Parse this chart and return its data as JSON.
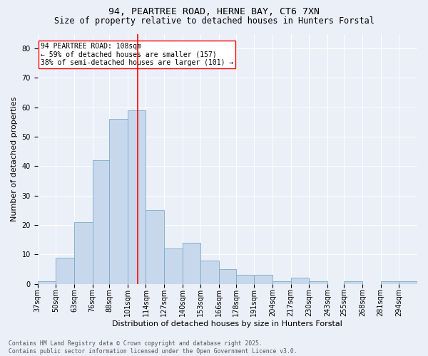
{
  "title1": "94, PEARTREE ROAD, HERNE BAY, CT6 7XN",
  "title2": "Size of property relative to detached houses in Hunters Forstal",
  "xlabel": "Distribution of detached houses by size in Hunters Forstal",
  "ylabel": "Number of detached properties",
  "categories": [
    "37sqm",
    "50sqm",
    "63sqm",
    "76sqm",
    "88sqm",
    "101sqm",
    "114sqm",
    "127sqm",
    "140sqm",
    "153sqm",
    "166sqm",
    "178sqm",
    "191sqm",
    "204sqm",
    "217sqm",
    "230sqm",
    "243sqm",
    "255sqm",
    "268sqm",
    "281sqm",
    "294sqm"
  ],
  "bar_values": [
    1,
    9,
    21,
    42,
    56,
    59,
    25,
    12,
    14,
    8,
    5,
    3,
    3,
    1,
    2,
    1,
    0,
    1,
    0,
    1,
    1
  ],
  "bar_color": "#c8d8ec",
  "bar_edge_color": "#7aaac8",
  "vline_x": 108,
  "vline_color": "red",
  "annotation_text": "94 PEARTREE ROAD: 108sqm\n← 59% of detached houses are smaller (157)\n38% of semi-detached houses are larger (101) →",
  "annotation_box_color": "white",
  "annotation_box_edge_color": "red",
  "ylim": [
    0,
    85
  ],
  "yticks": [
    0,
    10,
    20,
    30,
    40,
    50,
    60,
    70,
    80
  ],
  "bin_edges": [
    37,
    50,
    63,
    76,
    88,
    101,
    114,
    127,
    140,
    153,
    166,
    178,
    191,
    204,
    217,
    230,
    243,
    255,
    268,
    281,
    294,
    307
  ],
  "background_color": "#eaeff8",
  "footer": "Contains HM Land Registry data © Crown copyright and database right 2025.\nContains public sector information licensed under the Open Government Licence v3.0.",
  "title1_fontsize": 9.5,
  "title2_fontsize": 8.5,
  "xlabel_fontsize": 8,
  "ylabel_fontsize": 8,
  "tick_fontsize": 7,
  "annotation_fontsize": 7,
  "footer_fontsize": 5.8
}
